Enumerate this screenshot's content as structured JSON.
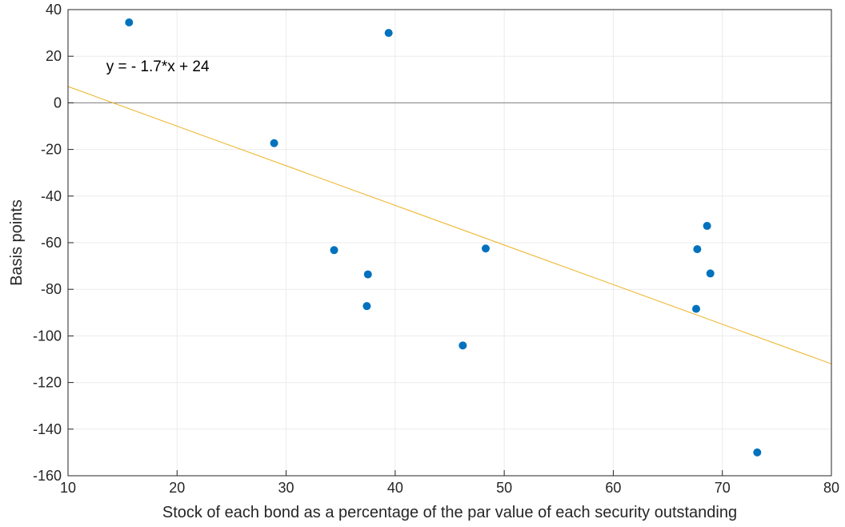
{
  "chart_data": {
    "type": "scatter",
    "title": "",
    "xlabel": "Stock of each bond as a percentage of the par value of each security outstanding",
    "ylabel": "Basis points",
    "xlim": [
      10,
      80
    ],
    "ylim": [
      -160,
      40
    ],
    "xticks": [
      10,
      20,
      30,
      40,
      50,
      60,
      70,
      80
    ],
    "yticks": [
      40,
      20,
      0,
      -20,
      -40,
      -60,
      -80,
      -100,
      -120,
      -140,
      -160
    ],
    "grid": true,
    "zero_line": true,
    "series": [
      {
        "type": "scatter",
        "color": "#0072BD",
        "points": [
          {
            "x": 15.6,
            "y": 34.5
          },
          {
            "x": 39.4,
            "y": 30.0
          },
          {
            "x": 28.9,
            "y": -17.3
          },
          {
            "x": 34.4,
            "y": -63.2
          },
          {
            "x": 37.5,
            "y": -73.6
          },
          {
            "x": 37.4,
            "y": -87.2
          },
          {
            "x": 48.3,
            "y": -62.5
          },
          {
            "x": 46.2,
            "y": -104.1
          },
          {
            "x": 68.6,
            "y": -52.8
          },
          {
            "x": 67.7,
            "y": -62.8
          },
          {
            "x": 68.9,
            "y": -73.2
          },
          {
            "x": 67.6,
            "y": -88.4
          },
          {
            "x": 73.2,
            "y": -150.0
          }
        ]
      },
      {
        "type": "line",
        "color": "#EDB120",
        "slope": -1.7,
        "intercept": 24,
        "x_range": [
          10,
          80
        ]
      }
    ],
    "annotations": [
      {
        "text": "y = - 1.7*x + 24",
        "x": 13.5,
        "y": 16
      }
    ]
  }
}
